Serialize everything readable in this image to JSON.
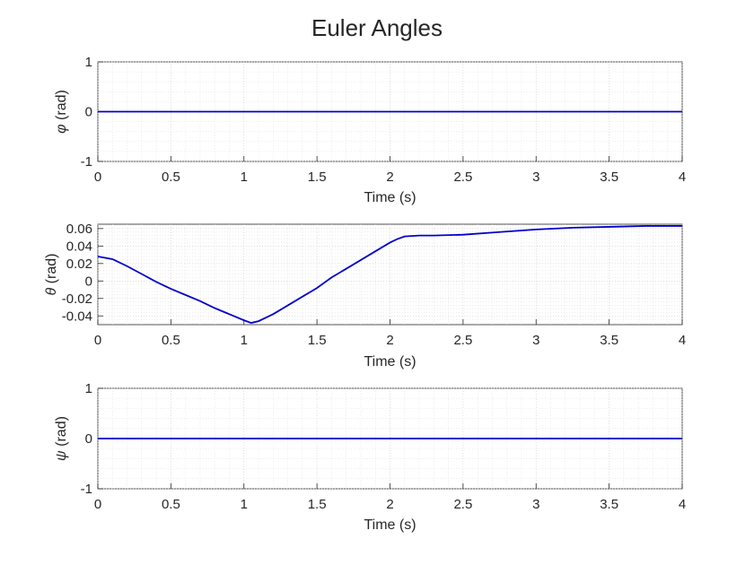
{
  "chart_data": {
    "title": "Euler Angles",
    "subplots": [
      {
        "type": "line",
        "xlabel": "Time (s)",
        "ylabel_symbol": "φ",
        "ylabel_unit": " (rad)",
        "xlim": [
          0,
          4
        ],
        "ylim": [
          -1,
          1
        ],
        "xticks": [
          0,
          0.5,
          1,
          1.5,
          2,
          2.5,
          3,
          3.5,
          4
        ],
        "yticks": [
          -1,
          0,
          1
        ],
        "xtick_labels": [
          "0",
          "0.5",
          "1",
          "1.5",
          "2",
          "2.5",
          "3",
          "3.5",
          "4"
        ],
        "ytick_labels": [
          "-1",
          "0",
          "1"
        ],
        "grid": true,
        "minor_grid": true,
        "line_color": "#0000cc",
        "x": [
          0,
          4
        ],
        "y": [
          0,
          0
        ]
      },
      {
        "type": "line",
        "xlabel": "Time (s)",
        "ylabel_symbol": "θ",
        "ylabel_unit": " (rad)",
        "xlim": [
          0,
          4
        ],
        "ylim": [
          -0.05,
          0.065
        ],
        "xticks": [
          0,
          0.5,
          1,
          1.5,
          2,
          2.5,
          3,
          3.5,
          4
        ],
        "yticks": [
          -0.04,
          -0.02,
          0,
          0.02,
          0.04,
          0.06
        ],
        "xtick_labels": [
          "0",
          "0.5",
          "1",
          "1.5",
          "2",
          "2.5",
          "3",
          "3.5",
          "4"
        ],
        "ytick_labels": [
          "-0.04",
          "-0.02",
          "0",
          "0.02",
          "0.04",
          "0.06"
        ],
        "grid": true,
        "minor_grid": true,
        "line_color": "#0000cc",
        "x": [
          0,
          0.1,
          0.2,
          0.3,
          0.4,
          0.5,
          0.6,
          0.7,
          0.8,
          0.9,
          1.0,
          1.05,
          1.1,
          1.2,
          1.3,
          1.4,
          1.5,
          1.6,
          1.7,
          1.8,
          1.9,
          2.0,
          2.05,
          2.1,
          2.2,
          2.3,
          2.5,
          2.75,
          3.0,
          3.25,
          3.5,
          3.75,
          4.0
        ],
        "y": [
          0.028,
          0.025,
          0.017,
          0.008,
          -0.001,
          -0.009,
          -0.016,
          -0.023,
          -0.031,
          -0.038,
          -0.045,
          -0.048,
          -0.046,
          -0.038,
          -0.028,
          -0.018,
          -0.008,
          0.004,
          0.014,
          0.024,
          0.034,
          0.044,
          0.048,
          0.051,
          0.052,
          0.052,
          0.053,
          0.056,
          0.059,
          0.061,
          0.062,
          0.063,
          0.063
        ]
      },
      {
        "type": "line",
        "xlabel": "Time (s)",
        "ylabel_symbol": "ψ",
        "ylabel_unit": " (rad)",
        "xlim": [
          0,
          4
        ],
        "ylim": [
          -1,
          1
        ],
        "xticks": [
          0,
          0.5,
          1,
          1.5,
          2,
          2.5,
          3,
          3.5,
          4
        ],
        "yticks": [
          -1,
          0,
          1
        ],
        "xtick_labels": [
          "0",
          "0.5",
          "1",
          "1.5",
          "2",
          "2.5",
          "3",
          "3.5",
          "4"
        ],
        "ytick_labels": [
          "-1",
          "0",
          "1"
        ],
        "grid": true,
        "minor_grid": true,
        "line_color": "#0000cc",
        "x": [
          0,
          4
        ],
        "y": [
          0,
          0
        ]
      }
    ]
  }
}
